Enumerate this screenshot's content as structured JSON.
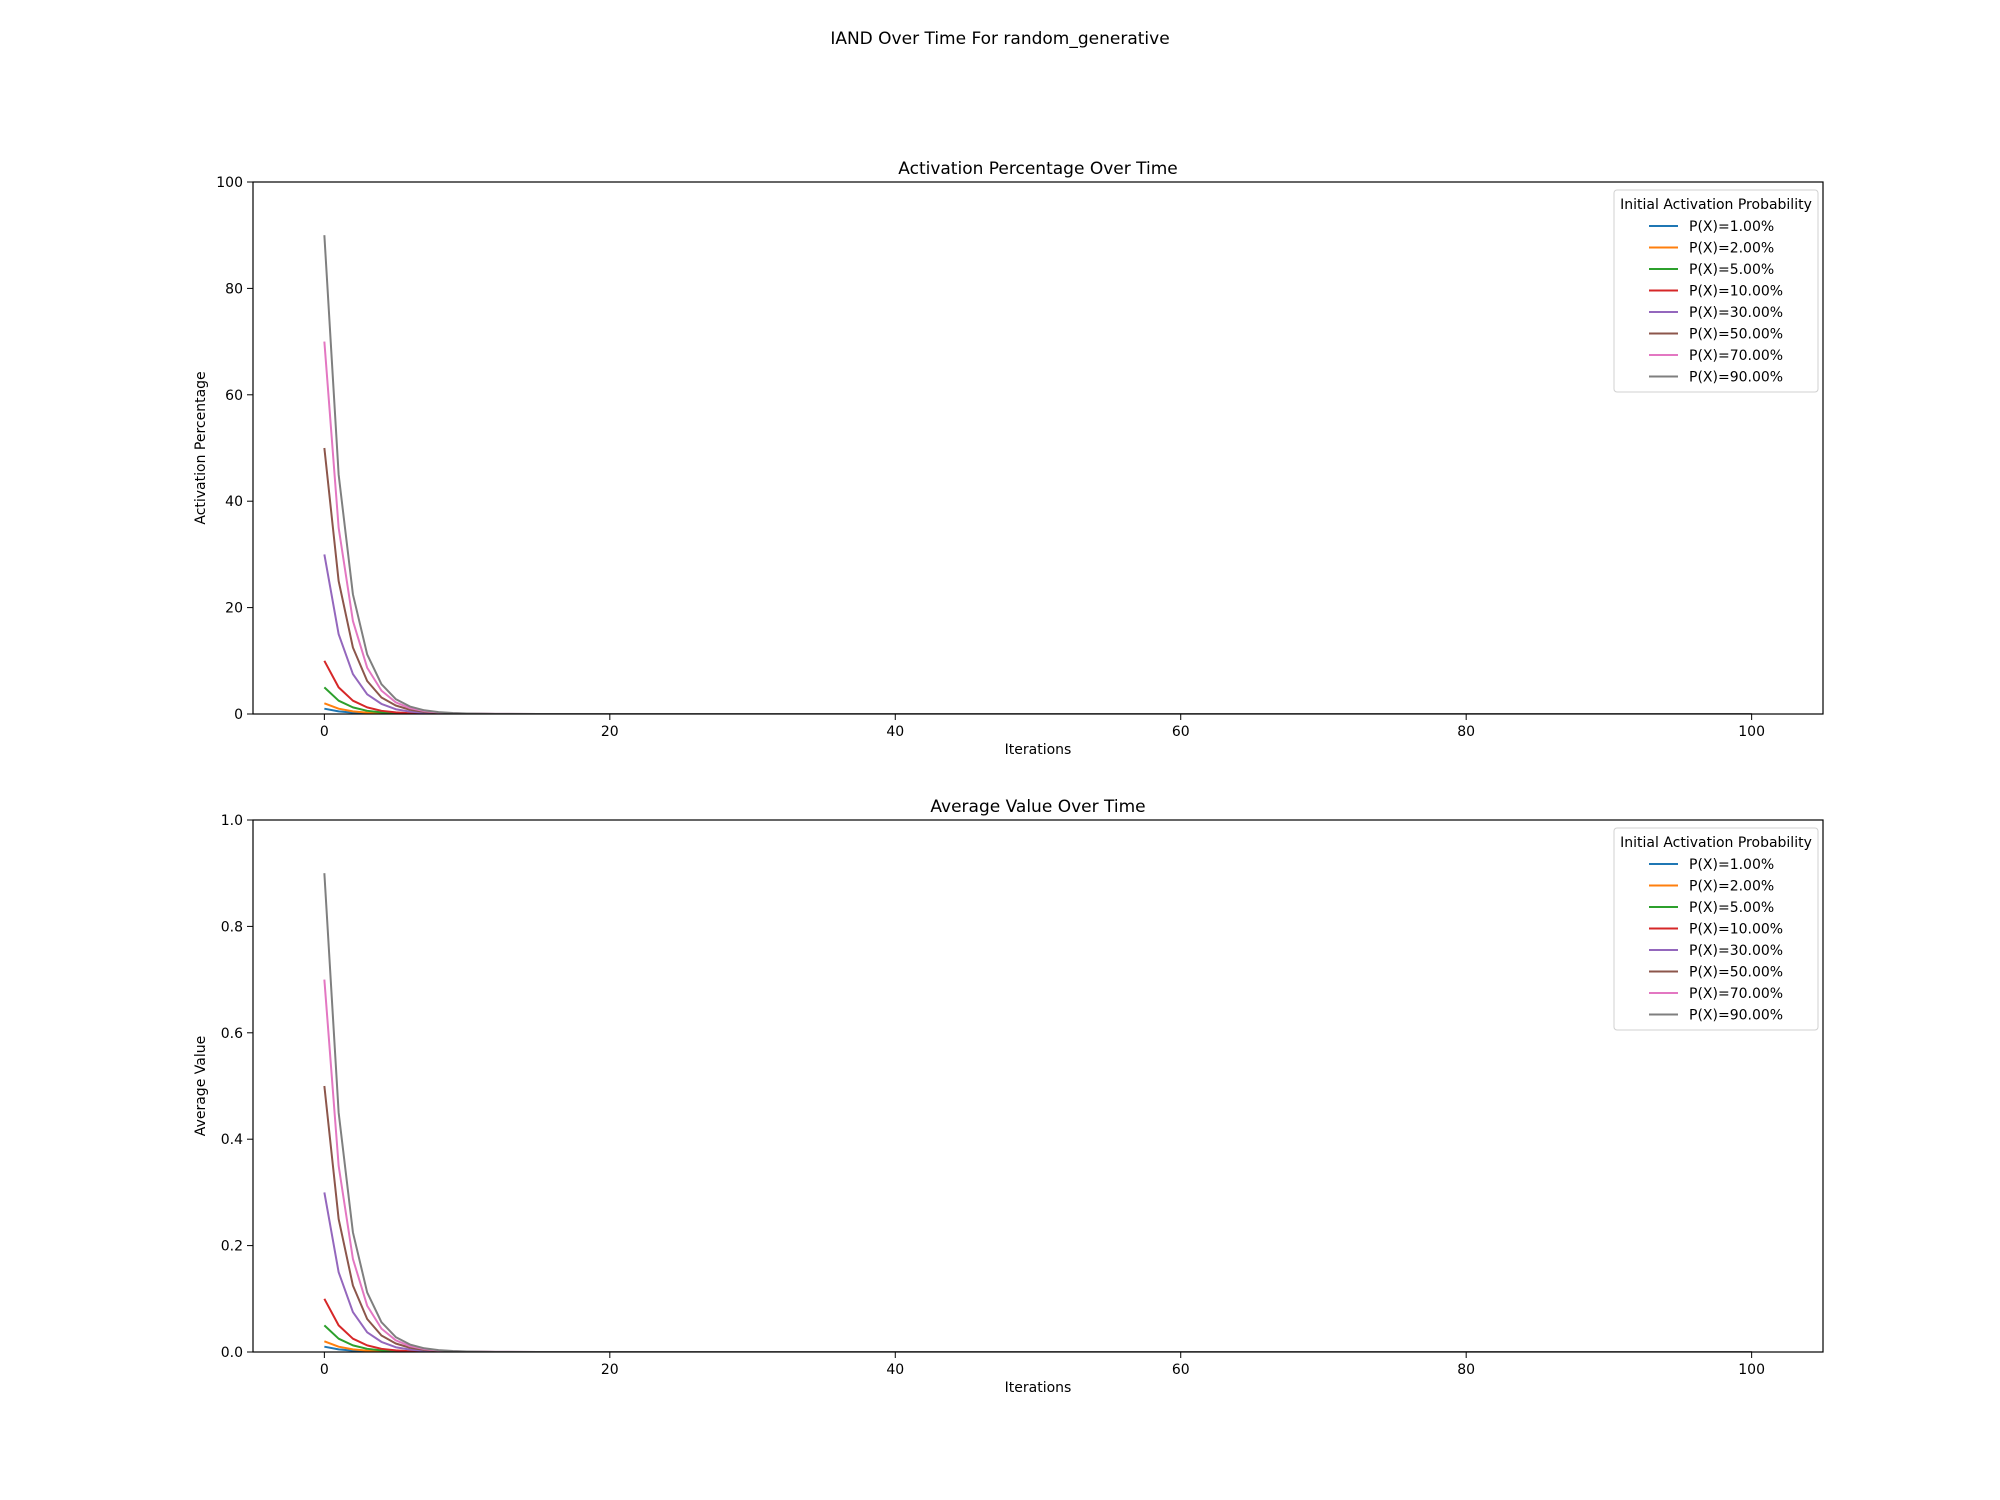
{
  "figure": {
    "suptitle": "IAND Over Time For random_generative"
  },
  "chart_data": [
    {
      "type": "line",
      "title": "Activation Percentage Over Time",
      "xlabel": "Iterations",
      "ylabel": "Activation Percentage",
      "xlim": [
        -5,
        105
      ],
      "ylim": [
        0,
        100
      ],
      "xticks": [
        0,
        20,
        40,
        60,
        80,
        100
      ],
      "yticks": [
        0,
        20,
        40,
        60,
        80,
        100
      ],
      "ytick_labels": [
        "0",
        "20",
        "40",
        "60",
        "80",
        "100"
      ],
      "grid": false,
      "legend": {
        "title": "Initial Activation Probability",
        "placement": "top-right"
      },
      "x": [
        0,
        1,
        2,
        3,
        4,
        5,
        6,
        7,
        8,
        9,
        10,
        12,
        15,
        20,
        30,
        40,
        50,
        60,
        70,
        80,
        90,
        100
      ],
      "series": [
        {
          "name": "P(X)=1.00%",
          "color": "#1f77b4",
          "values": [
            1,
            0.5,
            0.25,
            0.12,
            0.06,
            0.03,
            0.02,
            0.01,
            0,
            0,
            0,
            0,
            0,
            0,
            0,
            0,
            0,
            0,
            0,
            0,
            0,
            0
          ]
        },
        {
          "name": "P(X)=2.00%",
          "color": "#ff7f0e",
          "values": [
            2,
            1,
            0.5,
            0.25,
            0.12,
            0.06,
            0.03,
            0.02,
            0.01,
            0,
            0,
            0,
            0,
            0,
            0,
            0,
            0,
            0,
            0,
            0,
            0,
            0
          ]
        },
        {
          "name": "P(X)=5.00%",
          "color": "#2ca02c",
          "values": [
            5,
            2.5,
            1.25,
            0.6,
            0.3,
            0.15,
            0.08,
            0.04,
            0.02,
            0.01,
            0,
            0,
            0,
            0,
            0,
            0,
            0,
            0,
            0,
            0,
            0,
            0
          ]
        },
        {
          "name": "P(X)=10.00%",
          "color": "#d62728",
          "values": [
            10,
            5,
            2.5,
            1.25,
            0.6,
            0.3,
            0.15,
            0.08,
            0.04,
            0.02,
            0.01,
            0,
            0,
            0,
            0,
            0,
            0,
            0,
            0,
            0,
            0,
            0
          ]
        },
        {
          "name": "P(X)=30.00%",
          "color": "#9467bd",
          "values": [
            30,
            15,
            7.5,
            3.7,
            1.9,
            0.9,
            0.45,
            0.22,
            0.11,
            0.06,
            0.03,
            0.01,
            0,
            0,
            0,
            0,
            0,
            0,
            0,
            0,
            0,
            0
          ]
        },
        {
          "name": "P(X)=50.00%",
          "color": "#8c564b",
          "values": [
            50,
            25,
            12.5,
            6.2,
            3.1,
            1.6,
            0.8,
            0.4,
            0.2,
            0.1,
            0.05,
            0.01,
            0,
            0,
            0,
            0,
            0,
            0,
            0,
            0,
            0,
            0
          ]
        },
        {
          "name": "P(X)=70.00%",
          "color": "#e377c2",
          "values": [
            70,
            35,
            17.5,
            8.7,
            4.4,
            2.2,
            1.1,
            0.55,
            0.27,
            0.14,
            0.07,
            0.02,
            0,
            0,
            0,
            0,
            0,
            0,
            0,
            0,
            0,
            0
          ]
        },
        {
          "name": "P(X)=90.00%",
          "color": "#7f7f7f",
          "values": [
            90,
            45,
            22.5,
            11.2,
            5.6,
            2.8,
            1.4,
            0.7,
            0.35,
            0.18,
            0.09,
            0.02,
            0,
            0,
            0,
            0,
            0,
            0,
            0,
            0,
            0,
            0
          ]
        }
      ]
    },
    {
      "type": "line",
      "title": "Average Value Over Time",
      "xlabel": "Iterations",
      "ylabel": "Average Value",
      "xlim": [
        -5,
        105
      ],
      "ylim": [
        0,
        1
      ],
      "xticks": [
        0,
        20,
        40,
        60,
        80,
        100
      ],
      "yticks": [
        0,
        0.2,
        0.4,
        0.6,
        0.8,
        1.0
      ],
      "ytick_labels": [
        "0.0",
        "0.2",
        "0.4",
        "0.6",
        "0.8",
        "1.0"
      ],
      "grid": false,
      "legend": {
        "title": "Initial Activation Probability",
        "placement": "top-right"
      },
      "x": [
        0,
        1,
        2,
        3,
        4,
        5,
        6,
        7,
        8,
        9,
        10,
        12,
        15,
        20,
        30,
        40,
        50,
        60,
        70,
        80,
        90,
        100
      ],
      "series": [
        {
          "name": "P(X)=1.00%",
          "color": "#1f77b4",
          "values": [
            0.01,
            0.005,
            0.0025,
            0.0012,
            0.0006,
            0.0003,
            0.0002,
            0.0001,
            0,
            0,
            0,
            0,
            0,
            0,
            0,
            0,
            0,
            0,
            0,
            0,
            0,
            0
          ]
        },
        {
          "name": "P(X)=2.00%",
          "color": "#ff7f0e",
          "values": [
            0.02,
            0.01,
            0.005,
            0.0025,
            0.0012,
            0.0006,
            0.0003,
            0.0002,
            0.0001,
            0,
            0,
            0,
            0,
            0,
            0,
            0,
            0,
            0,
            0,
            0,
            0,
            0
          ]
        },
        {
          "name": "P(X)=5.00%",
          "color": "#2ca02c",
          "values": [
            0.05,
            0.025,
            0.0125,
            0.006,
            0.003,
            0.0015,
            0.0008,
            0.0004,
            0.0002,
            0.0001,
            0,
            0,
            0,
            0,
            0,
            0,
            0,
            0,
            0,
            0,
            0,
            0
          ]
        },
        {
          "name": "P(X)=10.00%",
          "color": "#d62728",
          "values": [
            0.1,
            0.05,
            0.025,
            0.0125,
            0.006,
            0.003,
            0.0015,
            0.0008,
            0.0004,
            0.0002,
            0.0001,
            0,
            0,
            0,
            0,
            0,
            0,
            0,
            0,
            0,
            0,
            0
          ]
        },
        {
          "name": "P(X)=30.00%",
          "color": "#9467bd",
          "values": [
            0.3,
            0.15,
            0.075,
            0.037,
            0.019,
            0.009,
            0.0045,
            0.0022,
            0.0011,
            0.0006,
            0.0003,
            0.0001,
            0,
            0,
            0,
            0,
            0,
            0,
            0,
            0,
            0,
            0
          ]
        },
        {
          "name": "P(X)=50.00%",
          "color": "#8c564b",
          "values": [
            0.5,
            0.25,
            0.125,
            0.062,
            0.031,
            0.016,
            0.008,
            0.004,
            0.002,
            0.001,
            0.0005,
            0.0001,
            0,
            0,
            0,
            0,
            0,
            0,
            0,
            0,
            0,
            0
          ]
        },
        {
          "name": "P(X)=70.00%",
          "color": "#e377c2",
          "values": [
            0.7,
            0.35,
            0.175,
            0.087,
            0.044,
            0.022,
            0.011,
            0.0055,
            0.0027,
            0.0014,
            0.0007,
            0.0002,
            0,
            0,
            0,
            0,
            0,
            0,
            0,
            0,
            0,
            0
          ]
        },
        {
          "name": "P(X)=90.00%",
          "color": "#7f7f7f",
          "values": [
            0.9,
            0.45,
            0.225,
            0.112,
            0.056,
            0.028,
            0.014,
            0.007,
            0.0035,
            0.0018,
            0.0009,
            0.0002,
            0,
            0,
            0,
            0,
            0,
            0,
            0,
            0,
            0,
            0
          ]
        }
      ]
    }
  ]
}
